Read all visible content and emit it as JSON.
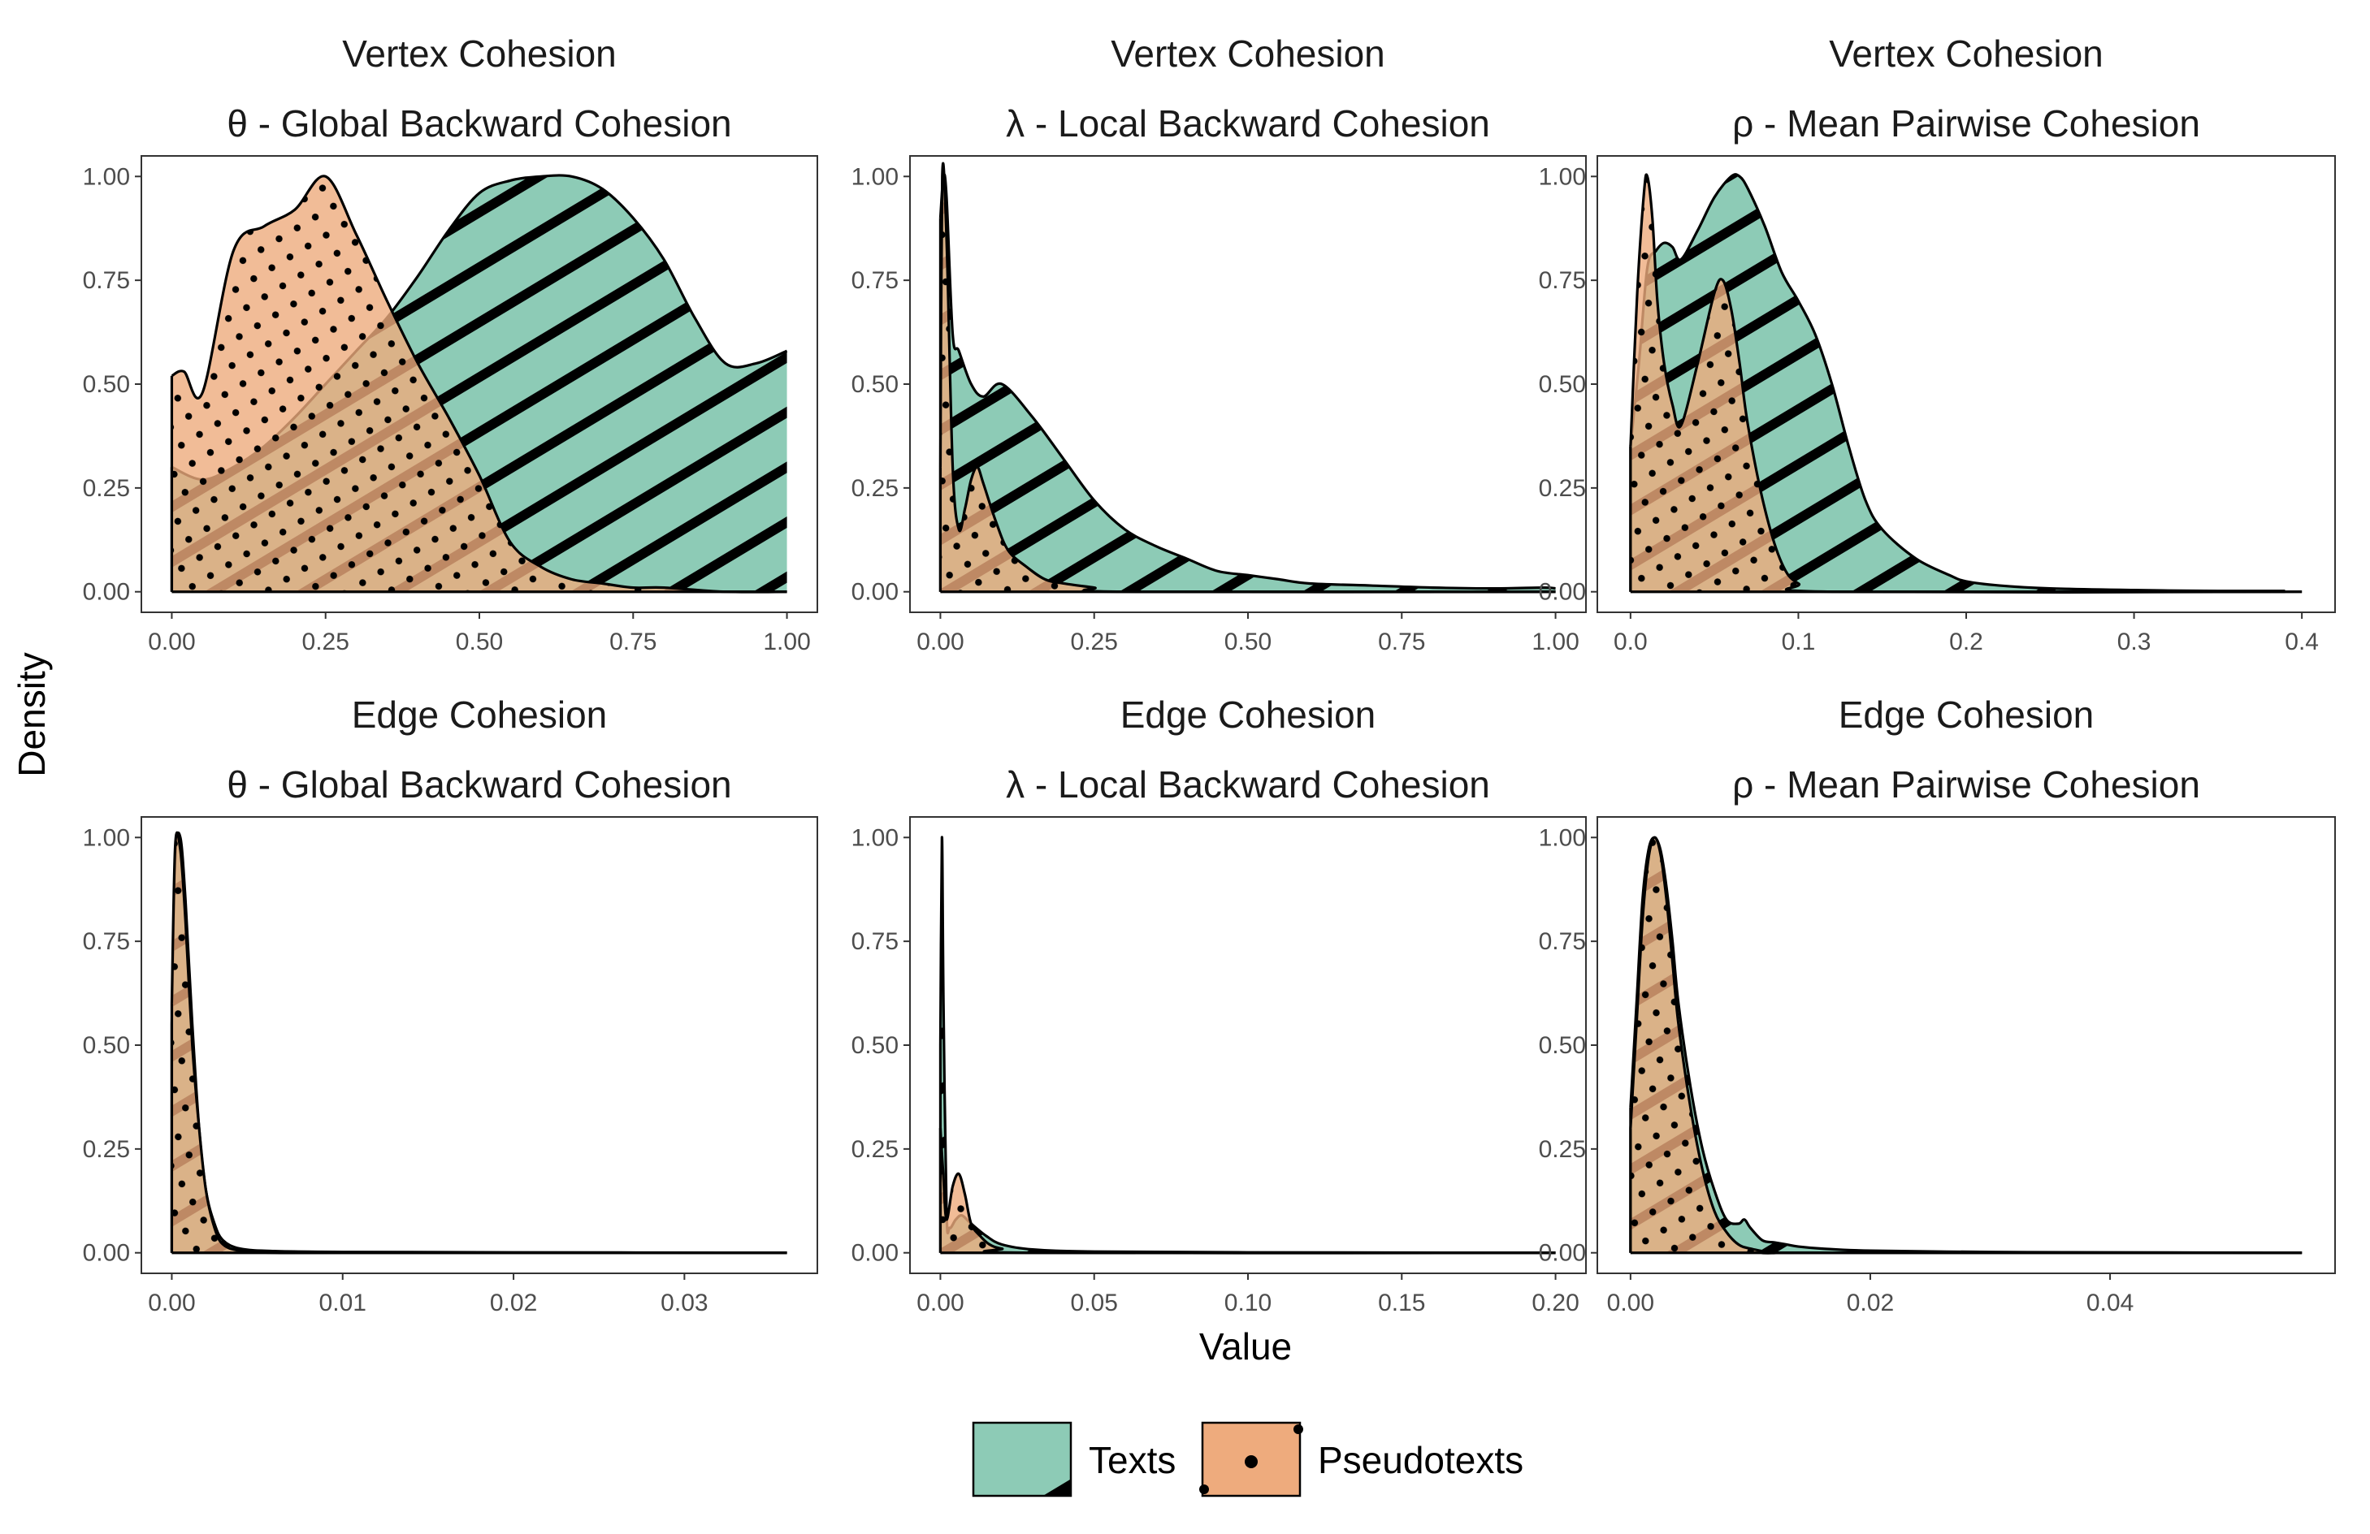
{
  "colors": {
    "texts": "#8dcbb6",
    "pseudotexts": "#eeab7d",
    "overlap": "#a8875e"
  },
  "chart_data": {
    "type": "area",
    "x_title": "Value",
    "y_title": "Density",
    "legend": {
      "position": "bottom",
      "items": [
        {
          "key": "texts",
          "label": "Texts",
          "pattern": "stripe"
        },
        {
          "key": "pseudotexts",
          "label": "Pseudotexts",
          "pattern": "dots"
        }
      ]
    },
    "panels": [
      {
        "group": "Vertex Cohesion",
        "measure": "θ - Global Backward Cohesion",
        "xlim": [
          0,
          1
        ],
        "ylim": [
          0,
          1
        ],
        "x_ticks": [
          {
            "v": 0,
            "label": "0.00"
          },
          {
            "v": 0.25,
            "label": "0.25"
          },
          {
            "v": 0.5,
            "label": "0.50"
          },
          {
            "v": 0.75,
            "label": "0.75"
          },
          {
            "v": 1.0,
            "label": "1.00"
          }
        ],
        "y_ticks": [
          {
            "v": 0,
            "label": "0.00"
          },
          {
            "v": 0.25,
            "label": "0.25"
          },
          {
            "v": 0.5,
            "label": "0.50"
          },
          {
            "v": 0.75,
            "label": "0.75"
          },
          {
            "v": 1.0,
            "label": "1.00"
          }
        ],
        "series": [
          {
            "name": "Texts",
            "x": [
              0,
              0.05,
              0.1,
              0.15,
              0.2,
              0.25,
              0.3,
              0.35,
              0.4,
              0.45,
              0.5,
              0.55,
              0.6,
              0.65,
              0.7,
              0.75,
              0.8,
              0.85,
              0.9,
              0.95,
              1.0
            ],
            "y": [
              0.3,
              0.27,
              0.3,
              0.35,
              0.42,
              0.5,
              0.58,
              0.66,
              0.76,
              0.87,
              0.96,
              0.99,
              1.0,
              1.0,
              0.97,
              0.9,
              0.8,
              0.66,
              0.55,
              0.55,
              0.58
            ]
          },
          {
            "name": "Pseudotexts",
            "x": [
              0,
              0.02,
              0.05,
              0.1,
              0.15,
              0.2,
              0.25,
              0.3,
              0.35,
              0.4,
              0.45,
              0.5,
              0.55,
              0.6,
              0.65,
              0.7,
              0.75,
              0.8,
              0.9,
              1.0
            ],
            "y": [
              0.52,
              0.53,
              0.48,
              0.82,
              0.88,
              0.92,
              1.0,
              0.86,
              0.7,
              0.55,
              0.42,
              0.28,
              0.12,
              0.06,
              0.03,
              0.02,
              0.01,
              0.01,
              0,
              0
            ]
          }
        ]
      },
      {
        "group": "Vertex Cohesion",
        "measure": "λ - Local Backward Cohesion",
        "xlim": [
          0,
          1
        ],
        "ylim": [
          0,
          1
        ],
        "x_ticks": [
          {
            "v": 0,
            "label": "0.00"
          },
          {
            "v": 0.25,
            "label": "0.25"
          },
          {
            "v": 0.5,
            "label": "0.50"
          },
          {
            "v": 0.75,
            "label": "0.75"
          },
          {
            "v": 1.0,
            "label": "1.00"
          }
        ],
        "y_ticks": [
          {
            "v": 0,
            "label": "0.00"
          },
          {
            "v": 0.25,
            "label": "0.25"
          },
          {
            "v": 0.5,
            "label": "0.50"
          },
          {
            "v": 0.75,
            "label": "0.75"
          },
          {
            "v": 1.0,
            "label": "1.00"
          }
        ],
        "series": [
          {
            "name": "Texts",
            "x": [
              0,
              0.005,
              0.01,
              0.02,
              0.03,
              0.05,
              0.07,
              0.1,
              0.15,
              0.2,
              0.25,
              0.3,
              0.35,
              0.4,
              0.45,
              0.5,
              0.55,
              0.6,
              0.7,
              0.8,
              0.9,
              0.98,
              1.0
            ],
            "y": [
              0.9,
              1.0,
              0.95,
              0.62,
              0.58,
              0.5,
              0.47,
              0.5,
              0.42,
              0.32,
              0.22,
              0.15,
              0.11,
              0.08,
              0.05,
              0.04,
              0.03,
              0.02,
              0.015,
              0.01,
              0.008,
              0.01,
              0.008
            ]
          },
          {
            "name": "Pseudotexts",
            "x": [
              0,
              0.003,
              0.01,
              0.02,
              0.03,
              0.04,
              0.05,
              0.06,
              0.07,
              0.09,
              0.11,
              0.14,
              0.17,
              0.2,
              0.25,
              0.3,
              1.0
            ],
            "y": [
              0.3,
              1.0,
              0.85,
              0.3,
              0.15,
              0.2,
              0.27,
              0.3,
              0.26,
              0.17,
              0.1,
              0.06,
              0.03,
              0.02,
              0.01,
              0,
              0
            ]
          }
        ]
      },
      {
        "group": "Vertex Cohesion",
        "measure": "ρ - Mean Pairwise Cohesion",
        "xlim": [
          0,
          0.4
        ],
        "ylim": [
          0,
          1
        ],
        "x_ticks": [
          {
            "v": 0,
            "label": "0.0"
          },
          {
            "v": 0.1,
            "label": "0.1"
          },
          {
            "v": 0.2,
            "label": "0.2"
          },
          {
            "v": 0.3,
            "label": "0.3"
          },
          {
            "v": 0.4,
            "label": "0.4"
          }
        ],
        "y_ticks": [
          {
            "v": 0,
            "label": "0.00"
          },
          {
            "v": 0.25,
            "label": "0.25"
          },
          {
            "v": 0.5,
            "label": "0.50"
          },
          {
            "v": 0.75,
            "label": "0.75"
          },
          {
            "v": 1.0,
            "label": "1.00"
          }
        ],
        "series": [
          {
            "name": "Texts",
            "x": [
              0,
              0.005,
              0.01,
              0.015,
              0.02,
              0.025,
              0.03,
              0.04,
              0.05,
              0.06,
              0.065,
              0.07,
              0.08,
              0.09,
              0.1,
              0.11,
              0.12,
              0.13,
              0.14,
              0.15,
              0.17,
              0.19,
              0.2,
              0.22,
              0.25,
              0.3,
              0.35,
              0.39
            ],
            "y": [
              0.35,
              0.55,
              0.78,
              0.82,
              0.84,
              0.83,
              0.8,
              0.87,
              0.95,
              1.0,
              1.0,
              0.97,
              0.88,
              0.77,
              0.7,
              0.62,
              0.5,
              0.35,
              0.22,
              0.15,
              0.08,
              0.04,
              0.025,
              0.015,
              0.008,
              0.004,
              0.002,
              0.002
            ]
          },
          {
            "name": "Pseudotexts",
            "x": [
              0,
              0.004,
              0.008,
              0.01,
              0.013,
              0.016,
              0.02,
              0.025,
              0.03,
              0.04,
              0.05,
              0.055,
              0.06,
              0.065,
              0.07,
              0.08,
              0.09,
              0.1,
              0.12,
              0.4
            ],
            "y": [
              0.35,
              0.72,
              0.96,
              1.0,
              0.9,
              0.7,
              0.55,
              0.45,
              0.4,
              0.55,
              0.72,
              0.75,
              0.68,
              0.55,
              0.4,
              0.2,
              0.07,
              0.02,
              0,
              0
            ]
          }
        ]
      },
      {
        "group": "Edge Cohesion",
        "measure": "θ - Global Backward Cohesion",
        "xlim": [
          0,
          0.036
        ],
        "ylim": [
          0,
          1
        ],
        "x_ticks": [
          {
            "v": 0,
            "label": "0.00"
          },
          {
            "v": 0.01,
            "label": "0.01"
          },
          {
            "v": 0.02,
            "label": "0.02"
          },
          {
            "v": 0.03,
            "label": "0.03"
          }
        ],
        "y_ticks": [
          {
            "v": 0,
            "label": "0.00"
          },
          {
            "v": 0.25,
            "label": "0.25"
          },
          {
            "v": 0.5,
            "label": "0.50"
          },
          {
            "v": 0.75,
            "label": "0.75"
          },
          {
            "v": 1.0,
            "label": "1.00"
          }
        ],
        "series": [
          {
            "name": "Texts",
            "x": [
              0,
              0.0002,
              0.0005,
              0.0008,
              0.0012,
              0.0016,
              0.002,
              0.0025,
              0.003,
              0.004,
              0.006,
              0.01,
              0.02,
              0.036
            ],
            "y": [
              0.55,
              0.95,
              1.0,
              0.85,
              0.55,
              0.3,
              0.15,
              0.07,
              0.03,
              0.01,
              0.004,
              0.002,
              0.001,
              0
            ]
          },
          {
            "name": "Pseudotexts",
            "x": [
              0,
              0.0002,
              0.0005,
              0.0008,
              0.0012,
              0.0016,
              0.002,
              0.0025,
              0.003,
              0.004,
              0.006,
              0.01,
              0.036
            ],
            "y": [
              0.6,
              0.98,
              0.97,
              0.8,
              0.5,
              0.3,
              0.15,
              0.06,
              0.02,
              0.005,
              0,
              0,
              0
            ]
          }
        ]
      },
      {
        "group": "Edge Cohesion",
        "measure": "λ - Local Backward Cohesion",
        "xlim": [
          0,
          0.2
        ],
        "ylim": [
          0,
          1
        ],
        "x_ticks": [
          {
            "v": 0,
            "label": "0.00"
          },
          {
            "v": 0.05,
            "label": "0.05"
          },
          {
            "v": 0.1,
            "label": "0.10"
          },
          {
            "v": 0.15,
            "label": "0.15"
          },
          {
            "v": 0.2,
            "label": "0.20"
          }
        ],
        "y_ticks": [
          {
            "v": 0,
            "label": "0.00"
          },
          {
            "v": 0.25,
            "label": "0.25"
          },
          {
            "v": 0.5,
            "label": "0.50"
          },
          {
            "v": 0.75,
            "label": "0.75"
          },
          {
            "v": 1.0,
            "label": "1.00"
          }
        ],
        "series": [
          {
            "name": "Texts",
            "x": [
              0,
              0.0005,
              0.001,
              0.002,
              0.003,
              0.005,
              0.007,
              0.01,
              0.015,
              0.02,
              0.03,
              0.05,
              0.1,
              0.2
            ],
            "y": [
              0.5,
              1.0,
              0.6,
              0.1,
              0.06,
              0.08,
              0.09,
              0.07,
              0.04,
              0.02,
              0.008,
              0.003,
              0.001,
              0
            ]
          },
          {
            "name": "Pseudotexts",
            "x": [
              0,
              0.001,
              0.002,
              0.004,
              0.006,
              0.008,
              0.01,
              0.013,
              0.016,
              0.02,
              0.03,
              0.2
            ],
            "y": [
              0.3,
              0.18,
              0.08,
              0.16,
              0.19,
              0.14,
              0.07,
              0.04,
              0.02,
              0.01,
              0,
              0
            ]
          }
        ]
      },
      {
        "group": "Edge Cohesion",
        "measure": "ρ - Mean Pairwise Cohesion",
        "xlim": [
          0,
          0.056
        ],
        "ylim": [
          0,
          1
        ],
        "x_ticks": [
          {
            "v": 0,
            "label": "0.00"
          },
          {
            "v": 0.02,
            "label": "0.02"
          },
          {
            "v": 0.04,
            "label": "0.04"
          }
        ],
        "y_ticks": [
          {
            "v": 0,
            "label": "0.00"
          },
          {
            "v": 0.25,
            "label": "0.25"
          },
          {
            "v": 0.5,
            "label": "0.50"
          },
          {
            "v": 0.75,
            "label": "0.75"
          },
          {
            "v": 1.0,
            "label": "1.00"
          }
        ],
        "series": [
          {
            "name": "Texts",
            "x": [
              0,
              0.0005,
              0.001,
              0.0015,
              0.002,
              0.0025,
              0.003,
              0.0035,
              0.004,
              0.005,
              0.006,
              0.007,
              0.008,
              0.009,
              0.0095,
              0.01,
              0.011,
              0.012,
              0.013,
              0.014,
              0.016,
              0.02,
              0.03,
              0.04,
              0.056
            ],
            "y": [
              0.35,
              0.6,
              0.85,
              0.97,
              1.0,
              0.97,
              0.88,
              0.75,
              0.6,
              0.4,
              0.25,
              0.15,
              0.08,
              0.07,
              0.08,
              0.06,
              0.03,
              0.025,
              0.02,
              0.015,
              0.01,
              0.005,
              0.002,
              0.001,
              0
            ]
          },
          {
            "name": "Pseudotexts",
            "x": [
              0,
              0.0005,
              0.001,
              0.0015,
              0.002,
              0.0025,
              0.003,
              0.0035,
              0.004,
              0.005,
              0.006,
              0.007,
              0.008,
              0.009,
              0.01,
              0.012,
              0.015,
              0.056
            ],
            "y": [
              0.3,
              0.55,
              0.8,
              0.95,
              1.0,
              0.96,
              0.85,
              0.7,
              0.55,
              0.35,
              0.2,
              0.1,
              0.05,
              0.02,
              0.01,
              0,
              0,
              0
            ]
          }
        ]
      }
    ]
  }
}
